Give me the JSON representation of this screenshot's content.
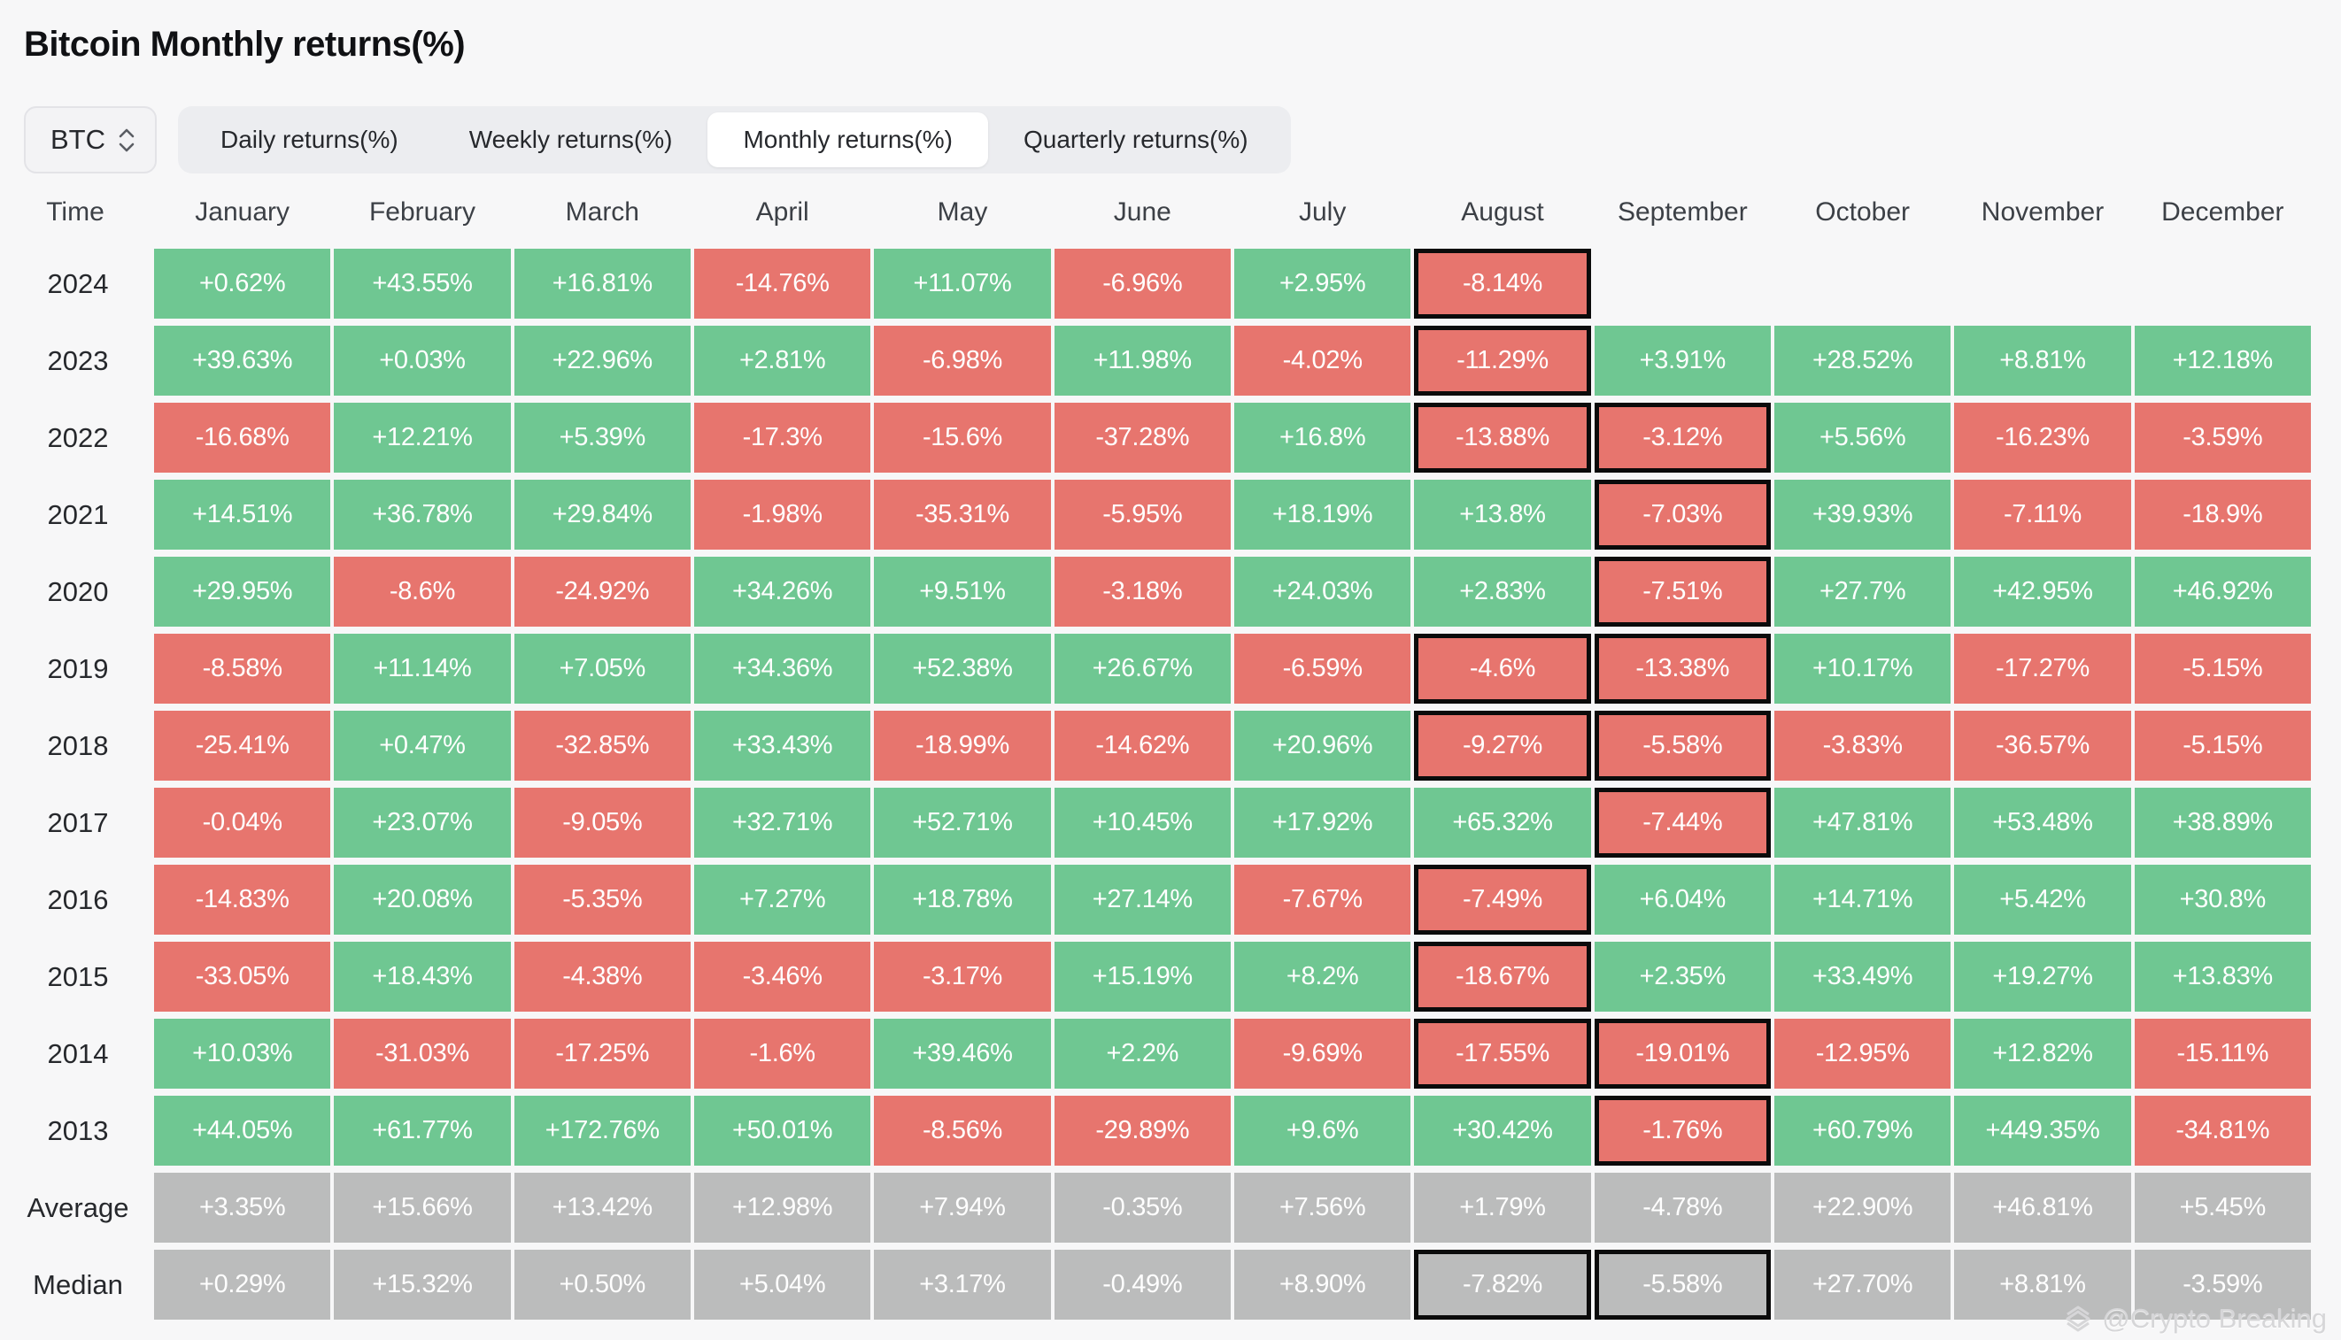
{
  "page": {
    "title": "Bitcoin Monthly returns(%)",
    "watermark": "@Crypto Breaking"
  },
  "controls": {
    "asset_selector": {
      "value": "BTC"
    },
    "tabs": [
      {
        "label": "Daily returns(%)",
        "active": false
      },
      {
        "label": "Weekly returns(%)",
        "active": false
      },
      {
        "label": "Monthly returns(%)",
        "active": true
      },
      {
        "label": "Quarterly returns(%)",
        "active": false
      }
    ]
  },
  "chart_data": {
    "type": "heatmap",
    "title": "Bitcoin Monthly returns(%)",
    "time_header": "Time",
    "months": [
      "January",
      "February",
      "March",
      "April",
      "May",
      "June",
      "July",
      "August",
      "September",
      "October",
      "November",
      "December"
    ],
    "colors": {
      "positive": "#6fc792",
      "negative": "#e7756e",
      "summary": "#bbbcbc",
      "highlight_border": "#0b0b0b"
    },
    "rows": [
      {
        "label": "2024",
        "kind": "year",
        "values": [
          "+0.62%",
          "+43.55%",
          "+16.81%",
          "-14.76%",
          "+11.07%",
          "-6.96%",
          "+2.95%",
          "-8.14%",
          null,
          null,
          null,
          null
        ],
        "highlighted_month_indexes": [
          7
        ]
      },
      {
        "label": "2023",
        "kind": "year",
        "values": [
          "+39.63%",
          "+0.03%",
          "+22.96%",
          "+2.81%",
          "-6.98%",
          "+11.98%",
          "-4.02%",
          "-11.29%",
          "+3.91%",
          "+28.52%",
          "+8.81%",
          "+12.18%"
        ],
        "highlighted_month_indexes": [
          7
        ]
      },
      {
        "label": "2022",
        "kind": "year",
        "values": [
          "-16.68%",
          "+12.21%",
          "+5.39%",
          "-17.3%",
          "-15.6%",
          "-37.28%",
          "+16.8%",
          "-13.88%",
          "-3.12%",
          "+5.56%",
          "-16.23%",
          "-3.59%"
        ],
        "highlighted_month_indexes": [
          7,
          8
        ]
      },
      {
        "label": "2021",
        "kind": "year",
        "values": [
          "+14.51%",
          "+36.78%",
          "+29.84%",
          "-1.98%",
          "-35.31%",
          "-5.95%",
          "+18.19%",
          "+13.8%",
          "-7.03%",
          "+39.93%",
          "-7.11%",
          "-18.9%"
        ],
        "highlighted_month_indexes": [
          8
        ]
      },
      {
        "label": "2020",
        "kind": "year",
        "values": [
          "+29.95%",
          "-8.6%",
          "-24.92%",
          "+34.26%",
          "+9.51%",
          "-3.18%",
          "+24.03%",
          "+2.83%",
          "-7.51%",
          "+27.7%",
          "+42.95%",
          "+46.92%"
        ],
        "highlighted_month_indexes": [
          8
        ]
      },
      {
        "label": "2019",
        "kind": "year",
        "values": [
          "-8.58%",
          "+11.14%",
          "+7.05%",
          "+34.36%",
          "+52.38%",
          "+26.67%",
          "-6.59%",
          "-4.6%",
          "-13.38%",
          "+10.17%",
          "-17.27%",
          "-5.15%"
        ],
        "highlighted_month_indexes": [
          7,
          8
        ]
      },
      {
        "label": "2018",
        "kind": "year",
        "values": [
          "-25.41%",
          "+0.47%",
          "-32.85%",
          "+33.43%",
          "-18.99%",
          "-14.62%",
          "+20.96%",
          "-9.27%",
          "-5.58%",
          "-3.83%",
          "-36.57%",
          "-5.15%"
        ],
        "highlighted_month_indexes": [
          7,
          8
        ]
      },
      {
        "label": "2017",
        "kind": "year",
        "values": [
          "-0.04%",
          "+23.07%",
          "-9.05%",
          "+32.71%",
          "+52.71%",
          "+10.45%",
          "+17.92%",
          "+65.32%",
          "-7.44%",
          "+47.81%",
          "+53.48%",
          "+38.89%"
        ],
        "highlighted_month_indexes": [
          8
        ]
      },
      {
        "label": "2016",
        "kind": "year",
        "values": [
          "-14.83%",
          "+20.08%",
          "-5.35%",
          "+7.27%",
          "+18.78%",
          "+27.14%",
          "-7.67%",
          "-7.49%",
          "+6.04%",
          "+14.71%",
          "+5.42%",
          "+30.8%"
        ],
        "highlighted_month_indexes": [
          7
        ]
      },
      {
        "label": "2015",
        "kind": "year",
        "values": [
          "-33.05%",
          "+18.43%",
          "-4.38%",
          "-3.46%",
          "-3.17%",
          "+15.19%",
          "+8.2%",
          "-18.67%",
          "+2.35%",
          "+33.49%",
          "+19.27%",
          "+13.83%"
        ],
        "highlighted_month_indexes": [
          7
        ]
      },
      {
        "label": "2014",
        "kind": "year",
        "values": [
          "+10.03%",
          "-31.03%",
          "-17.25%",
          "-1.6%",
          "+39.46%",
          "+2.2%",
          "-9.69%",
          "-17.55%",
          "-19.01%",
          "-12.95%",
          "+12.82%",
          "-15.11%"
        ],
        "highlighted_month_indexes": [
          7,
          8
        ]
      },
      {
        "label": "2013",
        "kind": "year",
        "values": [
          "+44.05%",
          "+61.77%",
          "+172.76%",
          "+50.01%",
          "-8.56%",
          "-29.89%",
          "+9.6%",
          "+30.42%",
          "-1.76%",
          "+60.79%",
          "+449.35%",
          "-34.81%"
        ],
        "highlighted_month_indexes": [
          8
        ]
      },
      {
        "label": "Average",
        "kind": "summary",
        "values": [
          "+3.35%",
          "+15.66%",
          "+13.42%",
          "+12.98%",
          "+7.94%",
          "-0.35%",
          "+7.56%",
          "+1.79%",
          "-4.78%",
          "+22.90%",
          "+46.81%",
          "+5.45%"
        ],
        "highlighted_month_indexes": []
      },
      {
        "label": "Median",
        "kind": "summary",
        "values": [
          "+0.29%",
          "+15.32%",
          "+0.50%",
          "+5.04%",
          "+3.17%",
          "-0.49%",
          "+8.90%",
          "-7.82%",
          "-5.58%",
          "+27.70%",
          "+8.81%",
          "-3.59%"
        ],
        "highlighted_month_indexes": [
          7,
          8
        ]
      }
    ]
  }
}
